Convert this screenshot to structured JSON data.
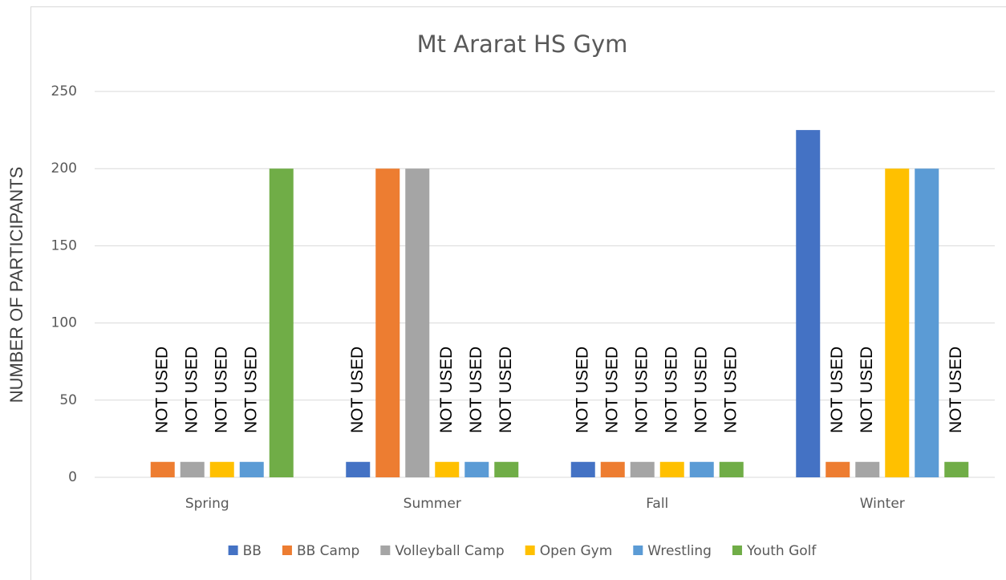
{
  "chart_data": {
    "type": "bar",
    "title": "Mt  Ararat HS Gym",
    "y_label": "NUMBER OF PARTICIPANTS",
    "categories": [
      "Spring",
      "Summer",
      "Fall",
      "Winter"
    ],
    "series": [
      {
        "name": "BB",
        "color": "#4472c4",
        "values": [
          null,
          10,
          10,
          225
        ],
        "value_labels": [
          null,
          "NOT USED",
          "NOT USED",
          null
        ]
      },
      {
        "name": "BB Camp",
        "color": "#ed7d31",
        "values": [
          10,
          200,
          10,
          10
        ],
        "value_labels": [
          "NOT USED",
          null,
          "NOT USED",
          "NOT USED"
        ]
      },
      {
        "name": "Volleyball Camp",
        "color": "#a5a5a5",
        "values": [
          10,
          200,
          10,
          10
        ],
        "value_labels": [
          "NOT USED",
          null,
          "NOT USED",
          "NOT USED"
        ]
      },
      {
        "name": "Open Gym",
        "color": "#ffc000",
        "values": [
          10,
          10,
          10,
          200
        ],
        "value_labels": [
          "NOT USED",
          "NOT USED",
          "NOT USED",
          null
        ]
      },
      {
        "name": "Wrestling",
        "color": "#5b9bd5",
        "values": [
          10,
          10,
          10,
          200
        ],
        "value_labels": [
          "NOT USED",
          "NOT USED",
          "NOT USED",
          null
        ]
      },
      {
        "name": "Youth Golf",
        "color": "#70ad47",
        "values": [
          200,
          10,
          10,
          10
        ],
        "value_labels": [
          null,
          "NOT USED",
          "NOT USED",
          "NOT USED"
        ]
      }
    ],
    "ylim": [
      0,
      250
    ],
    "yticks": [
      0,
      50,
      100,
      150,
      200,
      250
    ],
    "grid": true,
    "legend": "bottom"
  }
}
